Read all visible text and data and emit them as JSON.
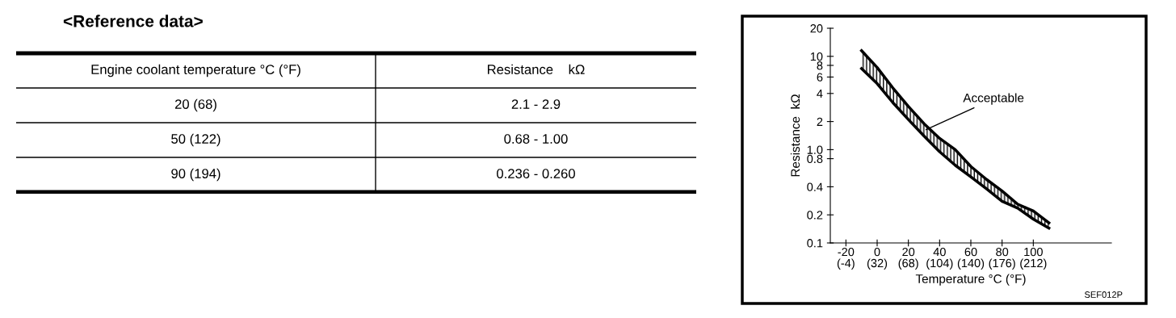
{
  "chart_data": [
    {
      "type": "other",
      "title": "<Reference data>",
      "annotations": [
        "Engine coolant temperature °C (°F)",
        "Resistance    kΩ",
        "20 (68)",
        "2.1 - 2.9",
        "50 (122)",
        "0.68 - 1.00",
        "90 (194)",
        "0.236 - 0.260"
      ]
    },
    {
      "type": "line",
      "log": "y",
      "grid": false,
      "marker": "none",
      "line_style": "solid",
      "xlabel": "Temperature °C (°F)",
      "ylabel": "Resistance  kΩ",
      "x": [
        -10,
        0,
        10,
        20,
        30,
        40,
        50,
        60,
        70,
        80,
        90,
        100,
        110
      ],
      "series": [
        {
          "color": "#000000",
          "values": [
            11.5,
            7.6,
            4.6,
            2.9,
            1.9,
            1.32,
            1.0,
            0.66,
            0.48,
            0.36,
            0.26,
            0.22,
            0.164
          ]
        },
        {
          "color": "#000000",
          "values": [
            7.4,
            5.1,
            3.2,
            2.1,
            1.4,
            0.95,
            0.68,
            0.51,
            0.38,
            0.28,
            0.236,
            0.18,
            0.144
          ]
        }
      ],
      "xlim": [
        -30,
        150
      ],
      "ylim": [
        0.1,
        20
      ],
      "xticks": [
        -20,
        0,
        20,
        40,
        60,
        80,
        100
      ],
      "x2lim": [
        -22,
        302
      ],
      "x2ticks": [
        {
          "value": -4,
          "label": "(-4)"
        },
        {
          "value": 32,
          "label": "(32)"
        },
        {
          "value": 68,
          "label": "(68)"
        },
        {
          "value": 104,
          "label": "(104)"
        },
        {
          "value": 140,
          "label": "(140)"
        },
        {
          "value": 176,
          "label": "(176)"
        },
        {
          "value": 212,
          "label": "(212)"
        }
      ],
      "yticks": [
        0.1,
        0.2,
        0.4,
        0.8,
        {
          "value": 1,
          "label": "1.0"
        },
        2,
        4,
        6,
        8,
        10,
        20
      ],
      "annotations": [
        {
          "text": "Acceptable",
          "x": 30,
          "y": 1.6
        },
        "SEF012P"
      ]
    }
  ]
}
